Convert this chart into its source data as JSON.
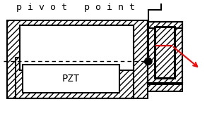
{
  "bg_color": "#ffffff",
  "line_color": "#000000",
  "red_color": "#ff0000",
  "title_text": "p i v o t   p o i n t",
  "pzt_label": "PZT",
  "title_fontsize": 9.5,
  "pzt_fontsize": 10,
  "figsize": [
    3.0,
    1.95
  ],
  "dpi": 100,
  "hatch_density": "////",
  "right_hatch_density": "////"
}
